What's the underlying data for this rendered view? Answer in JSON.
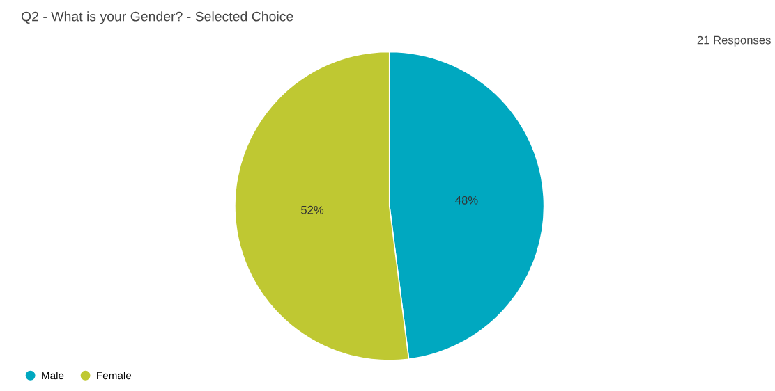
{
  "chart_data": {
    "type": "pie",
    "title": "Q2 - What is your Gender? - Selected Choice",
    "annotations": [
      "21 Responses"
    ],
    "categories": [
      "Male",
      "Female"
    ],
    "values": [
      48,
      52
    ],
    "colors": [
      "#00a8c0",
      "#bfc832"
    ],
    "value_labels": [
      "48%",
      "52%"
    ],
    "legend": "bottom left"
  }
}
